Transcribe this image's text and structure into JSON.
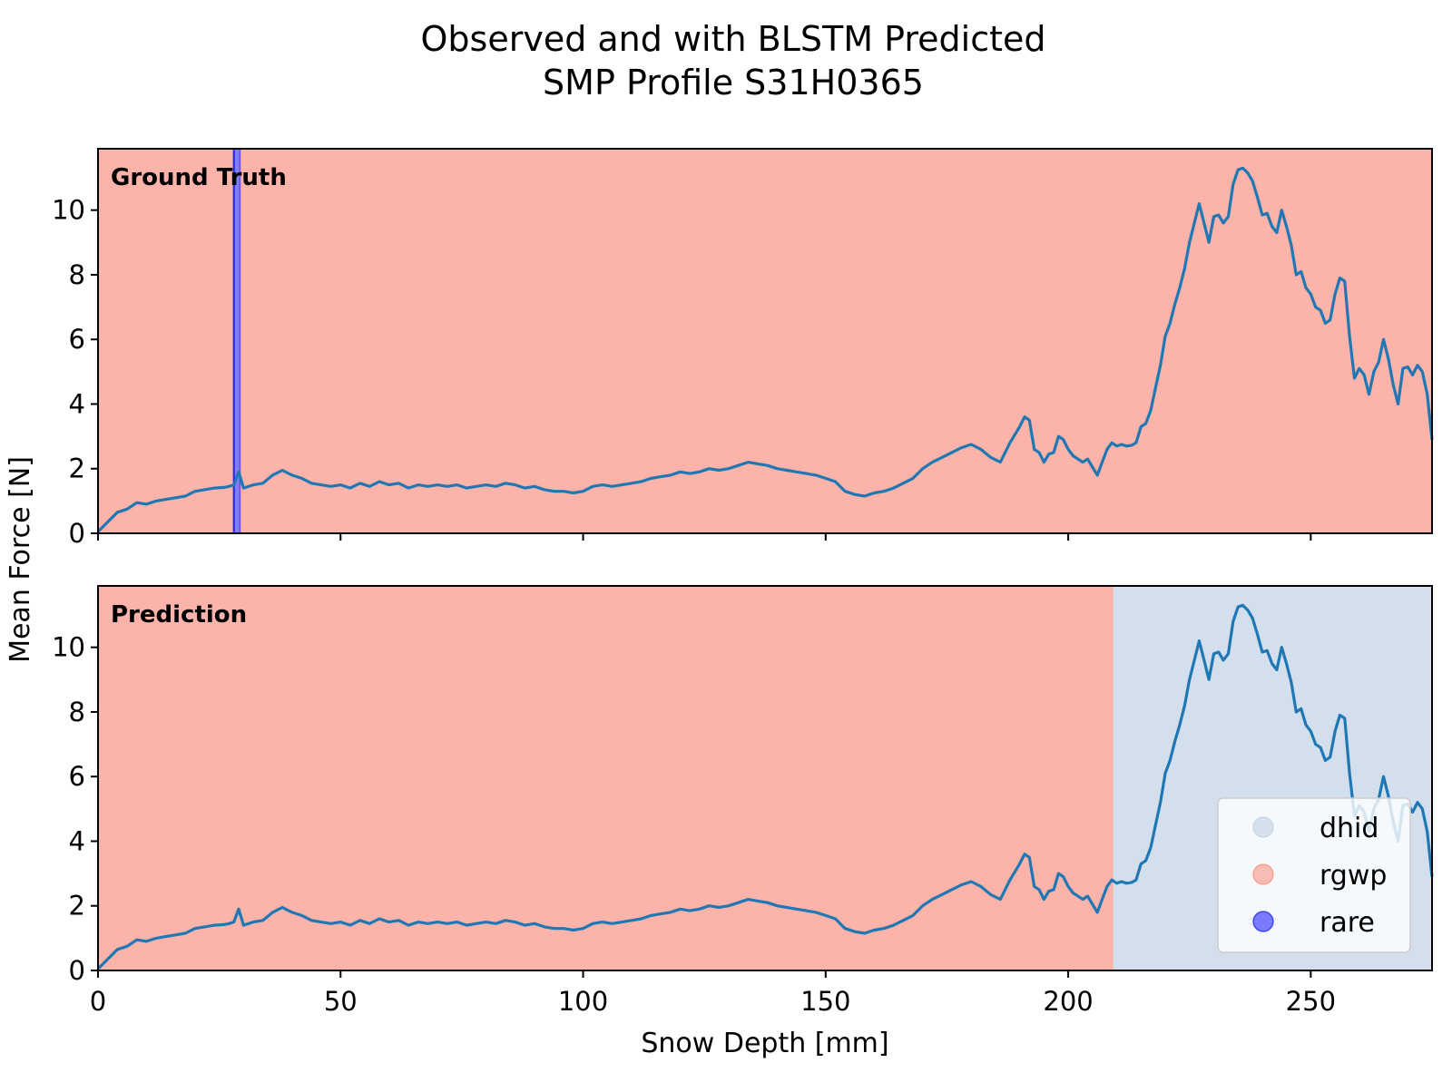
{
  "chart_data": {
    "type": "line",
    "title_lines": [
      "Observed and with BLSTM Predicted",
      "SMP Profile S31H0365"
    ],
    "xlabel": "Snow Depth [mm]",
    "ylabel": "Mean Force [N]",
    "xlim": [
      0,
      275
    ],
    "ylim": [
      0,
      11.9
    ],
    "xticks": [
      0,
      50,
      100,
      150,
      200,
      250
    ],
    "yticks": [
      0,
      2,
      4,
      6,
      8,
      10
    ],
    "grid": false,
    "legend": {
      "placement": "lower-right",
      "entries": [
        {
          "label": "dhid",
          "color": "#b6c9e0"
        },
        {
          "label": "rgwp",
          "color": "#fa8072"
        },
        {
          "label": "rare",
          "color": "#0000ff"
        }
      ]
    },
    "line_color": "#1f77b4",
    "panels": [
      {
        "label": "Ground Truth",
        "segments": [
          {
            "class": "rgwp",
            "x0": 0,
            "x1": 28,
            "color": "#fa8072"
          },
          {
            "class": "rare",
            "x0": 28,
            "x1": 29.3,
            "color": "#0000ff"
          },
          {
            "class": "rgwp",
            "x0": 29.3,
            "x1": 275,
            "color": "#fa8072"
          }
        ]
      },
      {
        "label": "Prediction",
        "segments": [
          {
            "class": "rgwp",
            "x0": 0,
            "x1": 209.3,
            "color": "#fa8072"
          },
          {
            "class": "dhid",
            "x0": 209.3,
            "x1": 275,
            "color": "#b6c9e0"
          }
        ]
      }
    ],
    "series": [
      {
        "x": [
          0,
          2,
          4,
          6,
          8,
          10,
          12,
          14,
          16,
          18,
          20,
          22,
          24,
          26,
          27,
          28,
          29,
          30,
          32,
          34,
          36,
          38,
          40,
          42,
          44,
          46,
          48,
          50,
          52,
          54,
          56,
          58,
          60,
          62,
          64,
          66,
          68,
          70,
          72,
          74,
          76,
          78,
          80,
          82,
          84,
          86,
          88,
          90,
          92,
          94,
          96,
          98,
          100,
          102,
          104,
          106,
          108,
          110,
          112,
          114,
          116,
          118,
          120,
          122,
          124,
          126,
          128,
          130,
          132,
          134,
          136,
          138,
          140,
          142,
          144,
          146,
          148,
          150,
          152,
          154,
          156,
          158,
          160,
          162,
          164,
          166,
          168,
          170,
          172,
          174,
          176,
          178,
          180,
          182,
          184,
          186,
          188,
          190,
          191,
          192,
          193,
          194,
          195,
          196,
          197,
          198,
          199,
          200,
          201,
          202,
          203,
          204,
          205,
          206,
          207,
          208,
          209,
          210,
          211,
          212,
          213,
          214,
          215,
          216,
          217,
          218,
          219,
          220,
          221,
          222,
          223,
          224,
          225,
          226,
          227,
          228,
          229,
          230,
          231,
          232,
          233,
          234,
          235,
          236,
          237,
          238,
          239,
          240,
          241,
          242,
          243,
          244,
          245,
          246,
          247,
          248,
          249,
          250,
          251,
          252,
          253,
          254,
          255,
          256,
          257,
          258,
          259,
          260,
          261,
          262,
          263,
          264,
          265,
          266,
          267,
          268,
          269,
          270,
          271,
          272,
          273,
          274,
          275
        ],
        "y": [
          0.05,
          0.35,
          0.65,
          0.75,
          0.95,
          0.9,
          1.0,
          1.05,
          1.1,
          1.15,
          1.3,
          1.35,
          1.4,
          1.42,
          1.45,
          1.5,
          1.9,
          1.4,
          1.5,
          1.55,
          1.8,
          1.95,
          1.8,
          1.7,
          1.55,
          1.5,
          1.45,
          1.5,
          1.4,
          1.55,
          1.45,
          1.6,
          1.5,
          1.55,
          1.4,
          1.5,
          1.45,
          1.5,
          1.45,
          1.5,
          1.4,
          1.45,
          1.5,
          1.45,
          1.55,
          1.5,
          1.4,
          1.45,
          1.35,
          1.3,
          1.3,
          1.25,
          1.3,
          1.45,
          1.5,
          1.45,
          1.5,
          1.55,
          1.6,
          1.7,
          1.75,
          1.8,
          1.9,
          1.85,
          1.9,
          2.0,
          1.95,
          2.0,
          2.1,
          2.2,
          2.15,
          2.1,
          2.0,
          1.95,
          1.9,
          1.85,
          1.8,
          1.7,
          1.6,
          1.3,
          1.2,
          1.15,
          1.25,
          1.3,
          1.4,
          1.55,
          1.7,
          2.0,
          2.2,
          2.35,
          2.5,
          2.65,
          2.75,
          2.6,
          2.35,
          2.2,
          2.8,
          3.3,
          3.6,
          3.5,
          2.6,
          2.5,
          2.2,
          2.45,
          2.5,
          3.0,
          2.9,
          2.6,
          2.4,
          2.3,
          2.2,
          2.3,
          2.05,
          1.8,
          2.2,
          2.6,
          2.8,
          2.7,
          2.75,
          2.7,
          2.72,
          2.8,
          3.3,
          3.4,
          3.8,
          4.5,
          5.2,
          6.1,
          6.5,
          7.1,
          7.6,
          8.2,
          9.0,
          9.6,
          10.2,
          9.6,
          9.0,
          9.8,
          9.85,
          9.6,
          9.8,
          10.8,
          11.25,
          11.3,
          11.15,
          10.9,
          10.4,
          9.85,
          9.9,
          9.5,
          9.3,
          10.0,
          9.5,
          8.9,
          8.0,
          8.1,
          7.6,
          7.4,
          7.0,
          6.9,
          6.5,
          6.6,
          7.4,
          7.9,
          7.8,
          6.1,
          4.8,
          5.1,
          4.9,
          4.3,
          5.0,
          5.3,
          6.0,
          5.4,
          4.6,
          4.0,
          5.1,
          5.15,
          4.9,
          5.2,
          5.0,
          4.3,
          2.9
        ]
      }
    ]
  }
}
